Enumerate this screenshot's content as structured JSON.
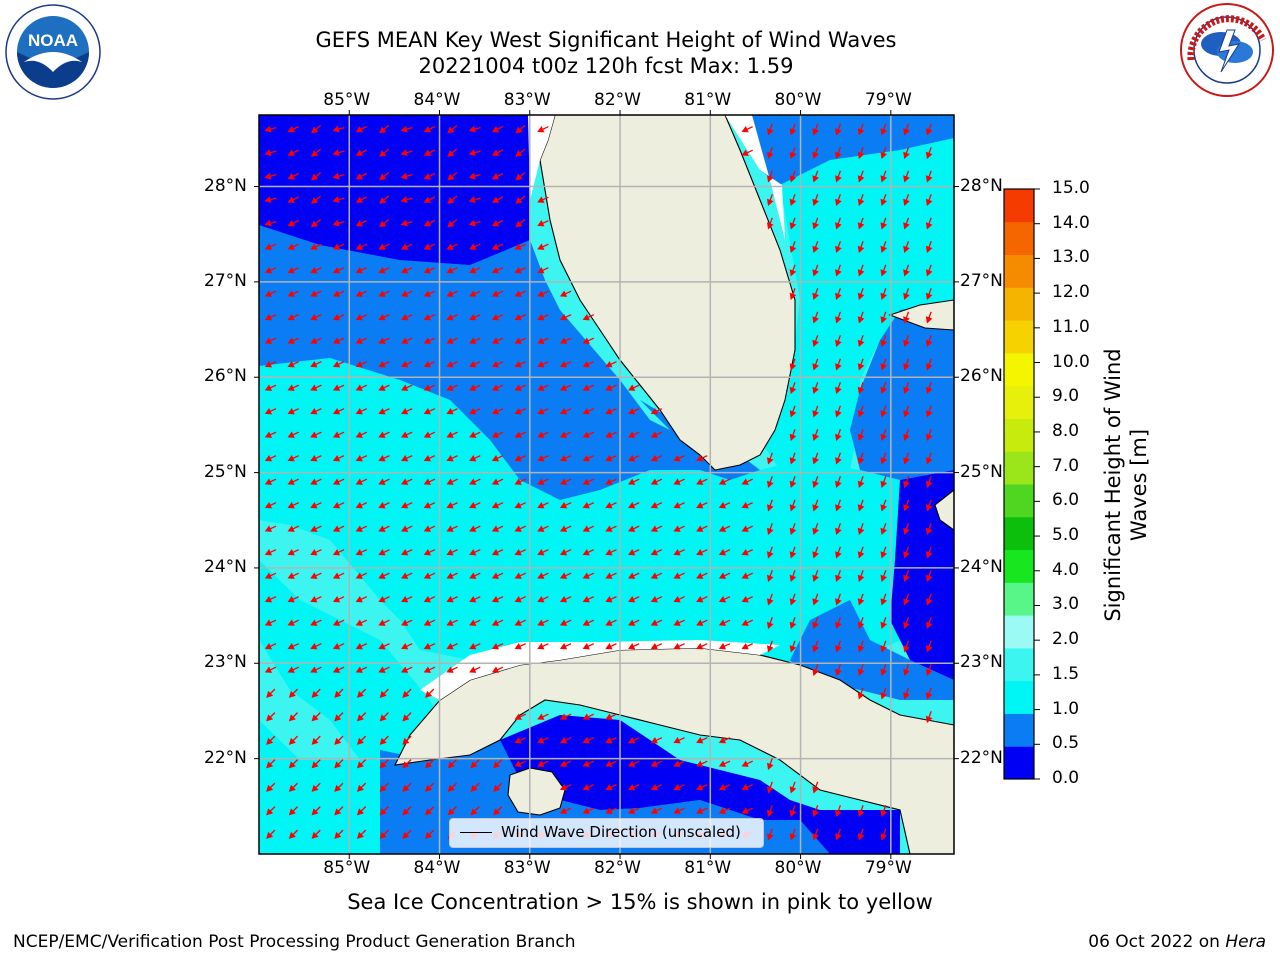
{
  "title_line1": "GEFS MEAN Key West Significant Height of Wind Waves",
  "title_line2": "20221004 t00z 120h fcst   Max: 1.59",
  "lon_labels": [
    "85°W",
    "84°W",
    "83°W",
    "82°W",
    "81°W",
    "80°W",
    "79°W"
  ],
  "lat_labels": [
    "28°N",
    "27°N",
    "26°N",
    "25°N",
    "24°N",
    "23°N",
    "22°N"
  ],
  "legend_label": "Wind Wave Direction (unscaled)",
  "colorbar": {
    "title": "Significant Height of Wind Waves [m]",
    "ticks": [
      "0.0",
      "0.5",
      "1.0",
      "1.5",
      "2.0",
      "3.0",
      "4.0",
      "5.0",
      "6.0",
      "7.0",
      "8.0",
      "9.0",
      "10.0",
      "11.0",
      "12.0",
      "13.0",
      "14.0",
      "15.0"
    ],
    "colors": [
      "#0000f5",
      "#0a7df5",
      "#00f5f5",
      "#3cf5f0",
      "#9cfaf5",
      "#58f588",
      "#17e71e",
      "#0cbf0c",
      "#4ed621",
      "#9ae61b",
      "#c7eb0c",
      "#e6f00a",
      "#f5f500",
      "#f5d200",
      "#f5b400",
      "#f58c00",
      "#f56600",
      "#f53c00",
      "#f50a0a"
    ],
    "scale_note": "Ticks from 0.0 to 2.0 step 0.5, then to 15.0 step 1.0"
  },
  "map": {
    "region": "Key West",
    "lon_range": [
      -86,
      -78.3
    ],
    "lat_range": [
      21,
      28.75
    ],
    "ocean_colors": {
      "lt0_5": "#0000f5",
      "0_5to1": "#0a7df5",
      "1to1_5": "#00f5f5",
      "1_5to2": "#3cf5f0"
    },
    "land_color": "#eeeedf",
    "arrow_color": "#ff0000",
    "grid_color": "#b3b3b3"
  },
  "note": "Sea Ice Concentration > 15% is shown in pink to yellow",
  "footer_left": "NCEP/EMC/Verification Post Processing Product Generation Branch",
  "footer_right_date": "06 Oct 2022 on ",
  "footer_right_host": "Hera",
  "logos": {
    "left": "NOAA",
    "right": "NATIONAL WEATHER SERVICE"
  }
}
